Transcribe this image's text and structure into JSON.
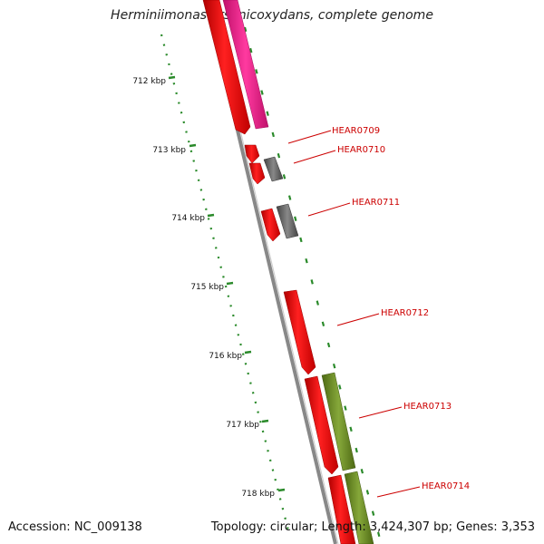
{
  "title": "Herminiimonas arsenicoxydans, complete genome",
  "footer": {
    "accession": "Accession: NC_009138",
    "summary": "Topology: circular; Length: 3,424,307 bp; Genes: 3,353"
  },
  "ruler": {
    "ticks": [
      {
        "label": "712 kbp",
        "kbp": 712
      },
      {
        "label": "713 kbp",
        "kbp": 713
      },
      {
        "label": "714 kbp",
        "kbp": 714
      },
      {
        "label": "715 kbp",
        "kbp": 715
      },
      {
        "label": "716 kbp",
        "kbp": 716
      },
      {
        "label": "717 kbp",
        "kbp": 717
      },
      {
        "label": "718 kbp",
        "kbp": 718
      }
    ]
  },
  "genes": [
    {
      "label": "HEAR0709"
    },
    {
      "label": "HEAR0710"
    },
    {
      "label": "HEAR0711"
    },
    {
      "label": "HEAR0712"
    },
    {
      "label": "HEAR0713"
    },
    {
      "label": "HEAR0714"
    }
  ],
  "colors": {
    "gene": "#ff0000",
    "magenta": "#ff2299",
    "grey_feature": "#666666",
    "olive_feature": "#6b8e23",
    "backbone": "#8a8a8a",
    "ruler": "#2a8a2a",
    "label": "#cc0000"
  }
}
